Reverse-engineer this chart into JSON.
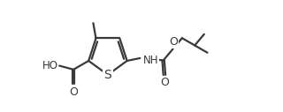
{
  "bg_color": "#ffffff",
  "line_color": "#3a3a3a",
  "line_width": 1.6,
  "font_size": 8.5,
  "fig_width": 3.2,
  "fig_height": 1.27,
  "dpi": 100,
  "xlim": [
    0,
    10
  ],
  "ylim": [
    0,
    4
  ]
}
